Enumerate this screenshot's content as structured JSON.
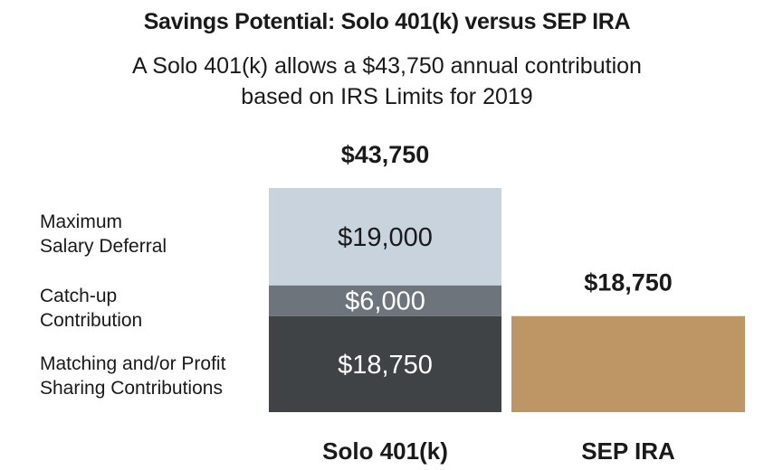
{
  "title": "Savings Potential: Solo 401(k) versus SEP IRA",
  "subtitle_lines": [
    "A Solo 401(k) allows a $43,750 annual contribution",
    "based on IRS Limits for 2019"
  ],
  "colors": {
    "maximum_salary_deferral": "#c9d3de",
    "catch_up_contribution": "#6d747b",
    "matching_profit_sharing": "#404346",
    "sep_ira": "#be9565",
    "text_dark": "#1a1a1a",
    "text_light": "#ffffff"
  },
  "chart_data": {
    "type": "bar",
    "stacked": true,
    "categories": [
      "Solo 401(k)",
      "SEP IRA"
    ],
    "series": [
      {
        "name": "Matching and/or Profit Sharing Contributions",
        "values": [
          18750,
          null
        ],
        "labels": [
          "$18,750",
          null
        ]
      },
      {
        "name": "Catch-up Contribution",
        "values": [
          6000,
          null
        ],
        "labels": [
          "$6,000",
          null
        ]
      },
      {
        "name": "Maximum Salary Deferral",
        "values": [
          19000,
          null
        ],
        "labels": [
          "$19,000",
          null
        ]
      },
      {
        "name": "",
        "values": [
          null,
          18750
        ],
        "labels": [
          null,
          null
        ]
      }
    ],
    "totals": [
      43750,
      18750
    ],
    "total_labels": [
      "$43,750",
      "$18,750"
    ],
    "row_labels": [
      [
        "Maximum",
        "Salary Deferral"
      ],
      [
        "Catch-up",
        "Contribution"
      ],
      [
        "Matching and/or Profit",
        "Sharing Contributions"
      ]
    ],
    "ylim": [
      0,
      43750
    ],
    "grid": false,
    "legend": "left"
  }
}
